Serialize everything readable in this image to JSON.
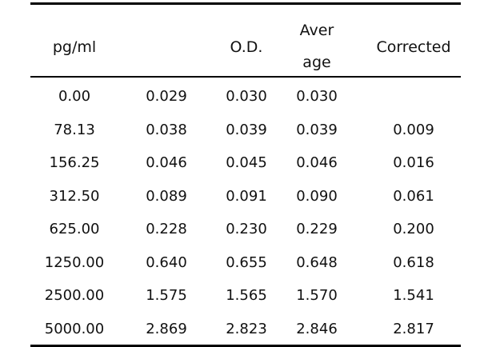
{
  "table": {
    "headers": {
      "concentration": "pg/ml",
      "od": "O.D.",
      "average_line1": "Aver",
      "average_line2": "age",
      "corrected": "Corrected"
    },
    "rows": [
      {
        "conc": "0.00",
        "od1": "0.029",
        "od2": "0.030",
        "avg": "0.030",
        "corrected": ""
      },
      {
        "conc": "78.13",
        "od1": "0.038",
        "od2": "0.039",
        "avg": "0.039",
        "corrected": "0.009"
      },
      {
        "conc": "156.25",
        "od1": "0.046",
        "od2": "0.045",
        "avg": "0.046",
        "corrected": "0.016"
      },
      {
        "conc": "312.50",
        "od1": "0.089",
        "od2": "0.091",
        "avg": "0.090",
        "corrected": "0.061"
      },
      {
        "conc": "625.00",
        "od1": "0.228",
        "od2": "0.230",
        "avg": "0.229",
        "corrected": "0.200"
      },
      {
        "conc": "1250.00",
        "od1": "0.640",
        "od2": "0.655",
        "avg": "0.648",
        "corrected": "0.618"
      },
      {
        "conc": "2500.00",
        "od1": "1.575",
        "od2": "1.565",
        "avg": "1.570",
        "corrected": "1.541"
      },
      {
        "conc": "5000.00",
        "od1": "2.869",
        "od2": "2.823",
        "avg": "2.846",
        "corrected": "2.817"
      }
    ]
  }
}
